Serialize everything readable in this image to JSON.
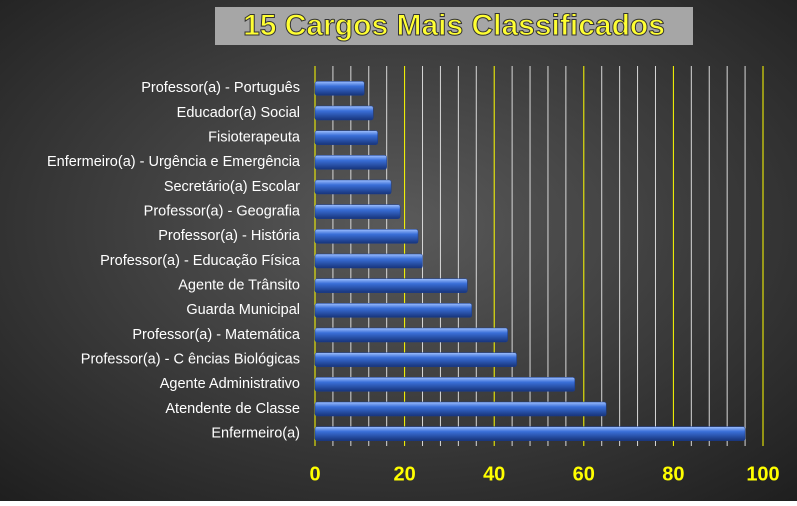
{
  "chart_data": {
    "type": "bar",
    "orientation": "horizontal",
    "title": "15 Cargos Mais Classificados",
    "categories": [
      "Professor(a) - Português",
      "Educador(a) Social",
      "Fisioterapeuta",
      "Enfermeiro(a) - Urgência e Emergência",
      "Secretário(a) Escolar",
      "Professor(a) - Geografia",
      "Professor(a) - História",
      "Professor(a) - Educação Física",
      "Agente de Trânsito",
      "Guarda Municipal",
      "Professor(a) - Matemática",
      "Professor(a) - C ências Biológicas",
      "Agente Administrativo",
      "Atendente de Classe",
      "Enfermeiro(a)"
    ],
    "values": [
      11,
      13,
      14,
      16,
      17,
      19,
      23,
      24,
      34,
      35,
      43,
      45,
      58,
      65,
      96
    ],
    "color": "#3a6fd8",
    "xlim": [
      0,
      100
    ],
    "xticks": [
      0,
      20,
      40,
      60,
      80,
      100
    ],
    "minor_xticks": [
      4,
      8,
      12,
      16,
      24,
      28,
      32,
      36,
      44,
      48,
      52,
      56,
      64,
      68,
      72,
      76,
      84,
      88,
      92,
      96
    ],
    "grid": true
  }
}
